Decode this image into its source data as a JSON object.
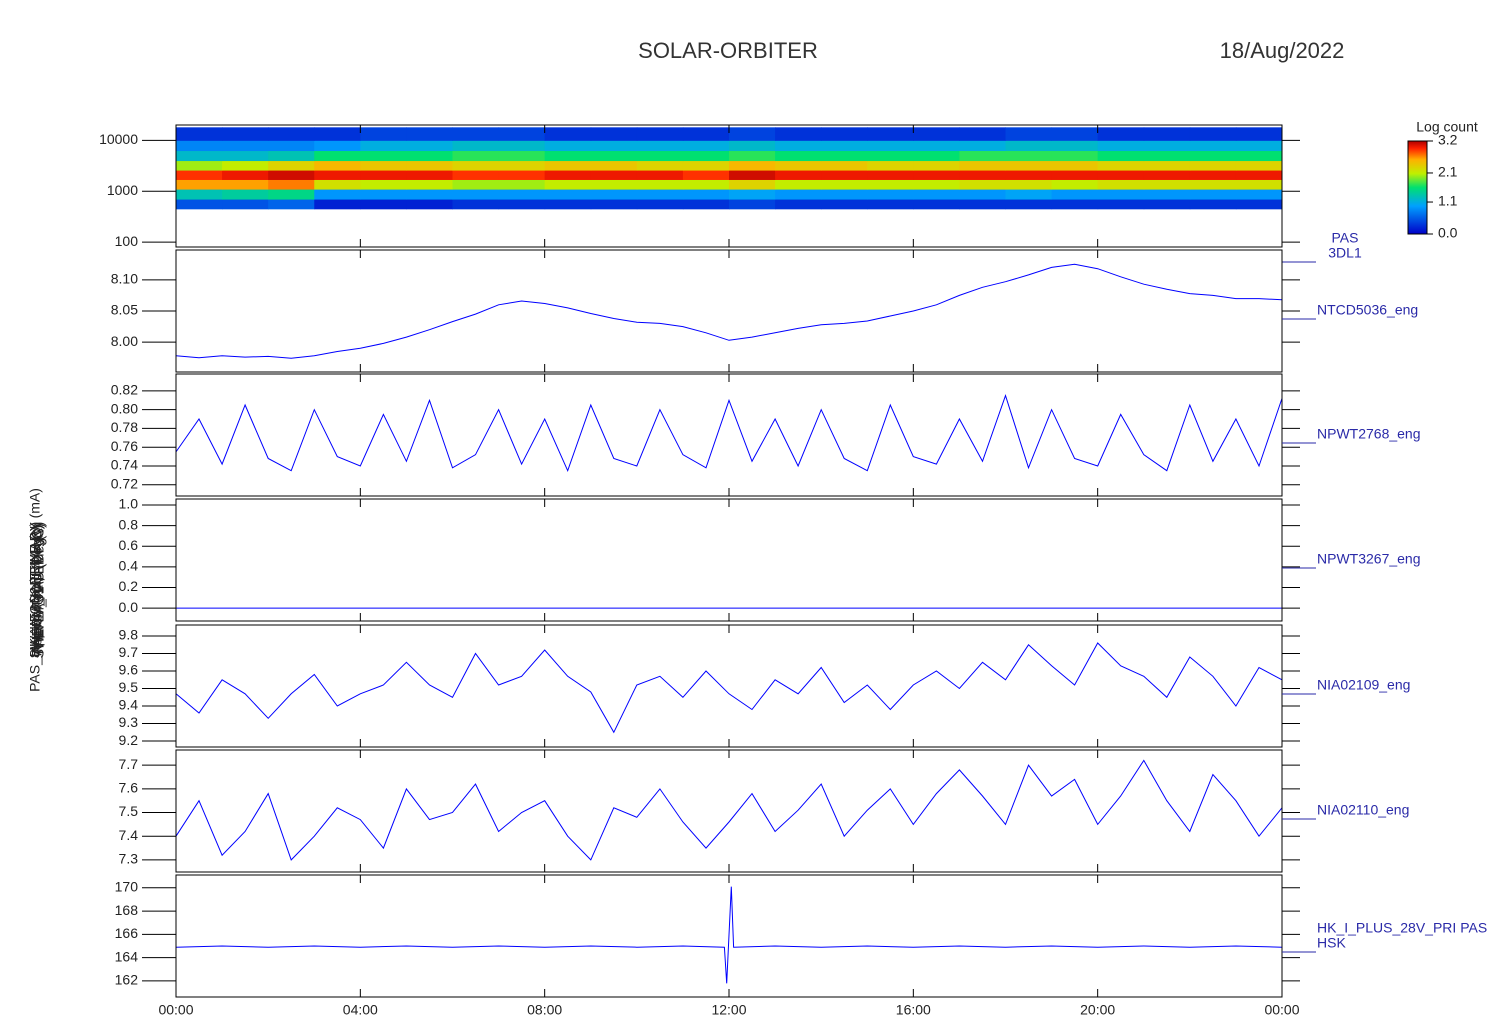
{
  "title": "SOLAR-ORBITER",
  "date": "18/Aug/2022",
  "xlim": [
    0,
    24
  ],
  "xticks": [
    {
      "value": 0,
      "label": "00:00"
    },
    {
      "value": 4,
      "label": "04:00"
    },
    {
      "value": 8,
      "label": "08:00"
    },
    {
      "value": 12,
      "label": "12:00"
    },
    {
      "value": 16,
      "label": "16:00"
    },
    {
      "value": 20,
      "label": "20:00"
    },
    {
      "value": 24,
      "label": "00:00"
    }
  ],
  "chart_data": [
    {
      "type": "heatmap",
      "label": [
        "PAS",
        "3DL1"
      ],
      "ytitle": "(eV)",
      "log_scale": true,
      "ylim": [
        80,
        20000
      ],
      "yticks": [
        100,
        1000,
        10000
      ],
      "x_bins": [
        0,
        1,
        2,
        3,
        4,
        5,
        6,
        7,
        8,
        9,
        10,
        11,
        12,
        13,
        14,
        15,
        16,
        17,
        18,
        19,
        20,
        21,
        22,
        23,
        24
      ],
      "y_bins": [
        450,
        700,
        1100,
        1700,
        2600,
        4000,
        6300,
        10000,
        18000
      ],
      "z": [
        [
          0.5,
          0.5,
          0.6,
          0.2,
          0.2,
          0.2,
          0.3,
          0.3,
          0.3,
          0.3,
          0.3,
          0.3,
          0.4,
          0.3,
          0.3,
          0.3,
          0.3,
          0.3,
          0.3,
          0.3,
          0.3,
          0.3,
          0.3,
          0.3
        ],
        [
          1.3,
          1.4,
          1.5,
          0.9,
          0.9,
          0.9,
          0.9,
          0.9,
          0.9,
          0.9,
          0.9,
          0.9,
          1.0,
          0.9,
          0.9,
          0.9,
          0.9,
          0.9,
          1.0,
          0.9,
          0.9,
          0.9,
          0.9,
          0.9
        ],
        [
          2.6,
          2.6,
          2.7,
          2.2,
          2.1,
          2.1,
          2.0,
          2.0,
          2.1,
          2.1,
          2.1,
          2.1,
          2.3,
          2.1,
          2.1,
          2.1,
          2.1,
          2.2,
          2.2,
          2.1,
          2.2,
          2.2,
          2.2,
          2.2
        ],
        [
          2.9,
          3.0,
          3.1,
          3.0,
          3.0,
          3.0,
          2.9,
          2.9,
          3.0,
          3.0,
          3.0,
          2.9,
          3.1,
          3.0,
          3.0,
          3.0,
          3.0,
          3.0,
          3.0,
          3.0,
          3.0,
          3.0,
          3.0,
          3.0
        ],
        [
          2.0,
          2.1,
          2.3,
          2.5,
          2.4,
          2.4,
          2.3,
          2.3,
          2.4,
          2.4,
          2.3,
          2.3,
          2.5,
          2.4,
          2.4,
          2.3,
          2.3,
          2.4,
          2.4,
          2.4,
          2.3,
          2.3,
          2.3,
          2.3
        ],
        [
          1.2,
          1.2,
          1.3,
          1.6,
          1.6,
          1.6,
          1.7,
          1.7,
          1.6,
          1.6,
          1.6,
          1.6,
          1.7,
          1.6,
          1.6,
          1.6,
          1.6,
          1.7,
          1.7,
          1.7,
          1.6,
          1.6,
          1.6,
          1.6
        ],
        [
          0.8,
          0.8,
          0.8,
          0.9,
          1.1,
          1.1,
          1.2,
          1.2,
          1.1,
          1.1,
          1.1,
          1.1,
          1.2,
          1.1,
          1.1,
          1.1,
          1.1,
          1.1,
          1.2,
          1.2,
          1.1,
          1.1,
          1.1,
          1.1
        ],
        [
          0.3,
          0.3,
          0.3,
          0.3,
          0.4,
          0.4,
          0.4,
          0.4,
          0.3,
          0.3,
          0.3,
          0.3,
          0.4,
          0.3,
          0.3,
          0.3,
          0.3,
          0.3,
          0.4,
          0.4,
          0.3,
          0.3,
          0.3,
          0.3
        ]
      ],
      "colormap": "rainbow",
      "colorbar_title": "Log count",
      "zlim": [
        0,
        3.2
      ],
      "zticks": [
        {
          "value": 0,
          "label": "0.0"
        },
        {
          "value": 1.1,
          "label": "1.1"
        },
        {
          "value": 2.1,
          "label": "2.1"
        },
        {
          "value": 3.2,
          "label": "3.2"
        }
      ]
    },
    {
      "type": "line",
      "label": [
        "NTCD5036_eng"
      ],
      "ytitle": "Approx Temp (DegC)",
      "color": "#0000ff",
      "ylim": [
        7.952,
        8.148
      ],
      "yticks": [
        {
          "value": 8.0,
          "label": "8.00"
        },
        {
          "value": 8.05,
          "label": "8.05"
        },
        {
          "value": 8.1,
          "label": "8.10"
        }
      ],
      "x": [
        0,
        0.5,
        1,
        1.5,
        2,
        2.5,
        3,
        3.5,
        4,
        4.5,
        5,
        5.5,
        6,
        6.5,
        7,
        7.5,
        8,
        8.5,
        9,
        9.5,
        10,
        10.5,
        11,
        11.5,
        12,
        12.5,
        13,
        13.5,
        14,
        14.5,
        15,
        15.5,
        16,
        16.5,
        17,
        17.5,
        18,
        18.5,
        19,
        19.5,
        20,
        20.5,
        21,
        21.5,
        22,
        22.5,
        23,
        23.5,
        24
      ],
      "values": [
        7.978,
        7.975,
        7.978,
        7.976,
        7.977,
        7.974,
        7.978,
        7.985,
        7.99,
        7.998,
        8.008,
        8.02,
        8.033,
        8.045,
        8.06,
        8.066,
        8.062,
        8.055,
        8.046,
        8.038,
        8.032,
        8.03,
        8.025,
        8.015,
        8.003,
        8.008,
        8.015,
        8.022,
        8.028,
        8.03,
        8.034,
        8.042,
        8.05,
        8.06,
        8.075,
        8.088,
        8.097,
        8.108,
        8.12,
        8.125,
        8.118,
        8.105,
        8.093,
        8.085,
        8.078,
        8.075,
        8.07,
        8.07,
        8.068
      ]
    },
    {
      "type": "line",
      "label": [
        "NPWT2768_eng"
      ],
      "ytitle": "SWA-EAS1 TEMP (V)",
      "color": "#0000ff",
      "ylim": [
        0.708,
        0.838
      ],
      "yticks": [
        0.72,
        0.74,
        0.76,
        0.78,
        {
          "value": 0.8,
          "label": "0.80"
        },
        0.82
      ],
      "x": [
        0,
        0.5,
        1,
        1.5,
        2,
        2.5,
        3,
        3.5,
        4,
        4.5,
        5,
        5.5,
        6,
        6.5,
        7,
        7.5,
        8,
        8.5,
        9,
        9.5,
        10,
        10.5,
        11,
        11.5,
        12,
        12.5,
        13,
        13.5,
        14,
        14.5,
        15,
        15.5,
        16,
        16.5,
        17,
        17.5,
        18,
        18.5,
        19,
        19.5,
        20,
        20.5,
        21,
        21.5,
        22,
        22.5,
        23,
        23.5,
        24
      ],
      "values": [
        0.755,
        0.79,
        0.742,
        0.805,
        0.748,
        0.735,
        0.8,
        0.75,
        0.74,
        0.795,
        0.745,
        0.81,
        0.738,
        0.752,
        0.8,
        0.742,
        0.79,
        0.735,
        0.805,
        0.748,
        0.74,
        0.8,
        0.752,
        0.738,
        0.81,
        0.745,
        0.79,
        0.74,
        0.8,
        0.748,
        0.735,
        0.805,
        0.75,
        0.742,
        0.79,
        0.745,
        0.815,
        0.738,
        0.8,
        0.748,
        0.74,
        0.795,
        0.752,
        0.735,
        0.805,
        0.745,
        0.79,
        0.74,
        0.812
      ]
    },
    {
      "type": "line",
      "label": [
        "NPWT3267_eng"
      ],
      "ytitle": "SWA-EAS2 TEMP (V)",
      "color": "#0000ff",
      "ylim": [
        -0.125,
        1.058
      ],
      "yticks": [
        {
          "value": 0,
          "label": "0.0"
        },
        0.2,
        0.4,
        0.6,
        0.8,
        {
          "value": 1,
          "label": "1.0"
        }
      ],
      "x": [
        0,
        24
      ],
      "values": [
        0,
        0
      ]
    },
    {
      "type": "line",
      "label": [
        "NIA02109_eng"
      ],
      "ytitle": "THERM_ICU (DegC)",
      "color": "#0000ff",
      "ylim": [
        9.166,
        9.863
      ],
      "yticks": [
        9.2,
        9.3,
        9.4,
        9.5,
        9.6,
        9.7,
        9.8
      ],
      "x": [
        0,
        0.5,
        1,
        1.5,
        2,
        2.5,
        3,
        3.5,
        4,
        4.5,
        5,
        5.5,
        6,
        6.5,
        7,
        7.5,
        8,
        8.5,
        9,
        9.5,
        10,
        10.5,
        11,
        11.5,
        12,
        12.5,
        13,
        13.5,
        14,
        14.5,
        15,
        15.5,
        16,
        16.5,
        17,
        17.5,
        18,
        18.5,
        19,
        19.5,
        20,
        20.5,
        21,
        21.5,
        22,
        22.5,
        23,
        23.5,
        24
      ],
      "values": [
        9.47,
        9.36,
        9.55,
        9.47,
        9.33,
        9.47,
        9.58,
        9.4,
        9.47,
        9.52,
        9.65,
        9.52,
        9.45,
        9.7,
        9.52,
        9.57,
        9.72,
        9.57,
        9.48,
        9.25,
        9.52,
        9.57,
        9.45,
        9.6,
        9.47,
        9.38,
        9.55,
        9.47,
        9.62,
        9.42,
        9.52,
        9.38,
        9.52,
        9.6,
        9.5,
        9.65,
        9.55,
        9.75,
        9.63,
        9.52,
        9.76,
        9.63,
        9.57,
        9.45,
        9.68,
        9.57,
        9.4,
        9.62,
        9.55
      ]
    },
    {
      "type": "line",
      "label": [
        "NIA02110_eng"
      ],
      "ytitle": "THERM_PAS (DegC)",
      "color": "#0000ff",
      "ylim": [
        7.249,
        7.764
      ],
      "yticks": [
        7.3,
        7.4,
        7.5,
        7.6,
        7.7
      ],
      "x": [
        0,
        0.5,
        1,
        1.5,
        2,
        2.5,
        3,
        3.5,
        4,
        4.5,
        5,
        5.5,
        6,
        6.5,
        7,
        7.5,
        8,
        8.5,
        9,
        9.5,
        10,
        10.5,
        11,
        11.5,
        12,
        12.5,
        13,
        13.5,
        14,
        14.5,
        15,
        15.5,
        16,
        16.5,
        17,
        17.5,
        18,
        18.5,
        19,
        19.5,
        20,
        20.5,
        21,
        21.5,
        22,
        22.5,
        23,
        23.5,
        24
      ],
      "values": [
        7.4,
        7.55,
        7.32,
        7.42,
        7.58,
        7.3,
        7.4,
        7.52,
        7.47,
        7.35,
        7.6,
        7.47,
        7.5,
        7.62,
        7.42,
        7.5,
        7.55,
        7.4,
        7.3,
        7.52,
        7.48,
        7.6,
        7.46,
        7.35,
        7.46,
        7.58,
        7.42,
        7.51,
        7.62,
        7.4,
        7.51,
        7.6,
        7.45,
        7.58,
        7.68,
        7.57,
        7.45,
        7.7,
        7.57,
        7.64,
        7.45,
        7.57,
        7.72,
        7.55,
        7.42,
        7.66,
        7.55,
        7.4,
        7.52
      ]
    },
    {
      "type": "line",
      "label": [
        "HK_I_PLUS_28V_PRI PAS",
        "HSK"
      ],
      "ytitle": "PAS_HK_IMON_PRIMARY (mA)",
      "color": "#0000ff",
      "ylim": [
        160.62,
        171.1
      ],
      "yticks": [
        162,
        164,
        166,
        168,
        170
      ],
      "x": [
        0,
        1,
        2,
        3,
        4,
        5,
        6,
        7,
        8,
        9,
        10,
        11,
        11.9,
        11.95,
        12.05,
        12.1,
        13,
        14,
        15,
        16,
        17,
        18,
        19,
        20,
        21,
        22,
        23,
        24
      ],
      "values": [
        164.9,
        165.0,
        164.9,
        165.0,
        164.9,
        165.0,
        164.9,
        165.0,
        164.9,
        165.0,
        164.9,
        165.0,
        164.9,
        161.8,
        170.1,
        164.9,
        165.0,
        164.9,
        165.0,
        164.9,
        165.0,
        164.9,
        165.0,
        164.9,
        165.0,
        164.9,
        165.0,
        164.9
      ]
    }
  ]
}
